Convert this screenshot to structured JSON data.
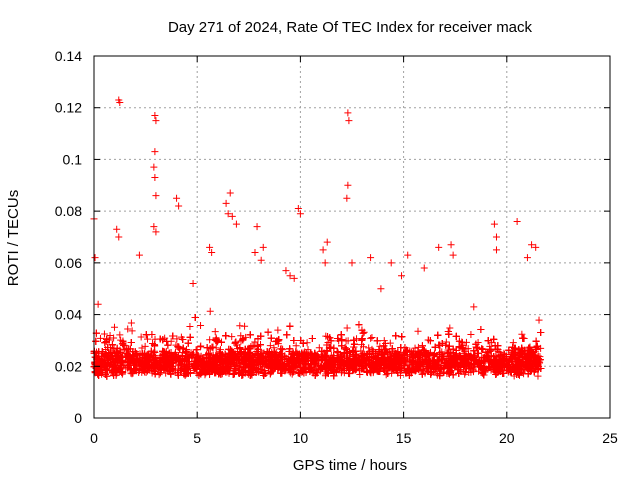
{
  "chart_data": {
    "type": "scatter",
    "title": "Day 271 of 2024, Rate Of TEC Index for receiver mack",
    "xlabel": "GPS time / hours",
    "ylabel": "ROTI / TECUs",
    "xlim": [
      0,
      25
    ],
    "ylim": [
      0,
      0.14
    ],
    "xticks": [
      "0",
      "5",
      "10",
      "15",
      "20",
      "25"
    ],
    "yticks": [
      "0",
      "0.02",
      "0.04",
      "0.06",
      "0.08",
      "0.1",
      "0.12",
      "0.14"
    ],
    "grid": true,
    "marker": "+",
    "color": "#ff0000",
    "series": [
      {
        "x": [
          1.2,
          1.25,
          2.95,
          3.0,
          2.95,
          2.9,
          2.95,
          6.6,
          6.4,
          6.7,
          12.3,
          12.35,
          12.3,
          12.25,
          9.9,
          0.0,
          0.05,
          0.2,
          1.1,
          1.2,
          2.9,
          3.0,
          3.0,
          4.0,
          4.1,
          5.6,
          5.7,
          6.5,
          6.9,
          7.9,
          8.2,
          8.1,
          9.5,
          9.7,
          11.1,
          11.2,
          13.4,
          14.4,
          15.2,
          16.0,
          16.7,
          17.3,
          17.4,
          19.4,
          19.5,
          19.5,
          20.5,
          21.2,
          21.4,
          21.0,
          7.8,
          9.3,
          11.3,
          12.5,
          14.9,
          18.4,
          10.0,
          2.2,
          4.8,
          13.9
        ],
        "y": [
          0.123,
          0.122,
          0.117,
          0.115,
          0.103,
          0.097,
          0.093,
          0.087,
          0.083,
          0.078,
          0.118,
          0.115,
          0.09,
          0.085,
          0.081,
          0.077,
          0.062,
          0.044,
          0.073,
          0.07,
          0.074,
          0.072,
          0.086,
          0.085,
          0.082,
          0.066,
          0.064,
          0.079,
          0.075,
          0.074,
          0.066,
          0.061,
          0.055,
          0.054,
          0.065,
          0.06,
          0.062,
          0.06,
          0.063,
          0.058,
          0.066,
          0.067,
          0.063,
          0.075,
          0.07,
          0.065,
          0.076,
          0.067,
          0.066,
          0.062,
          0.064,
          0.057,
          0.068,
          0.06,
          0.055,
          0.043,
          0.079,
          0.063,
          0.052,
          0.05
        ]
      }
    ]
  }
}
